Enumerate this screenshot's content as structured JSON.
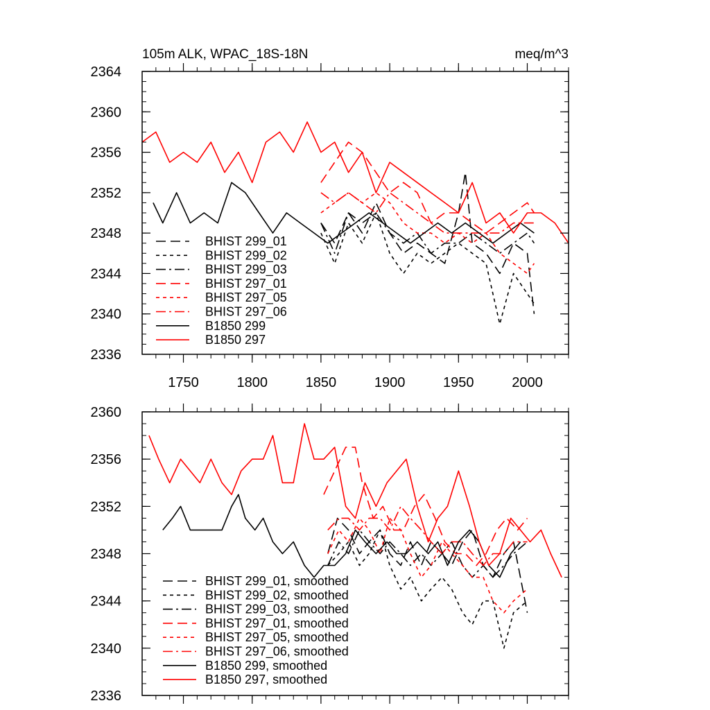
{
  "colors": {
    "black": "#000000",
    "red": "#ff0000"
  },
  "chart_data": [
    {
      "type": "line",
      "title": "105m ALK, WPAC_18S-18N",
      "units": "meq/m^3",
      "xlim": [
        1720,
        2030
      ],
      "ylim": [
        2336,
        2364
      ],
      "x_ticks": [
        1750,
        1800,
        1850,
        1900,
        1950,
        2000
      ],
      "x_tick_labels": [
        "1750",
        "1800",
        "1850",
        "1900",
        "1950",
        "2000"
      ],
      "y_ticks": [
        2336,
        2340,
        2344,
        2348,
        2352,
        2356,
        2360,
        2364
      ],
      "y_tick_labels": [
        "2336",
        "2340",
        "2344",
        "2348",
        "2352",
        "2356",
        "2360",
        "2364"
      ],
      "legend_position": "bottom-left",
      "series": [
        {
          "name": "BHIST 299_01",
          "color": "#000000",
          "dash": "long-dash",
          "x": [
            1850,
            1860,
            1870,
            1880,
            1890,
            1900,
            1910,
            1920,
            1930,
            1940,
            1950,
            1955,
            1960,
            1970,
            1980,
            1990,
            2000,
            2005
          ],
          "y": [
            2349,
            2347,
            2350,
            2348,
            2351,
            2348,
            2346,
            2347,
            2346,
            2345,
            2350,
            2354,
            2347,
            2346,
            2344,
            2347,
            2346,
            2340
          ]
        },
        {
          "name": "BHIST 299_02",
          "color": "#000000",
          "dash": "short-dash",
          "x": [
            1850,
            1860,
            1870,
            1880,
            1890,
            1900,
            1910,
            1920,
            1930,
            1940,
            1950,
            1960,
            1970,
            1980,
            1990,
            2000,
            2005
          ],
          "y": [
            2348,
            2345,
            2349,
            2347,
            2350,
            2346,
            2344,
            2346,
            2345,
            2346,
            2347,
            2346,
            2345,
            2339,
            2344,
            2342,
            2341
          ]
        },
        {
          "name": "BHIST 299_03",
          "color": "#000000",
          "dash": "dash-dot",
          "x": [
            1850,
            1860,
            1870,
            1880,
            1890,
            1900,
            1910,
            1920,
            1930,
            1940,
            1950,
            1960,
            1970,
            1980,
            1990,
            2000,
            2005
          ],
          "y": [
            2349,
            2346,
            2350,
            2349,
            2350,
            2348,
            2347,
            2348,
            2346,
            2347,
            2347,
            2348,
            2347,
            2346,
            2347,
            2348,
            2347
          ]
        },
        {
          "name": "BHIST 297_01",
          "color": "#ff0000",
          "dash": "long-dash",
          "x": [
            1850,
            1860,
            1870,
            1880,
            1890,
            1900,
            1910,
            1920,
            1930,
            1940,
            1950,
            1960,
            1970,
            1980,
            1990,
            2000,
            2005
          ],
          "y": [
            2353,
            2355,
            2357,
            2356,
            2354,
            2352,
            2353,
            2352,
            2349,
            2350,
            2350,
            2349,
            2348,
            2349,
            2350,
            2351,
            2350
          ]
        },
        {
          "name": "BHIST 297_05",
          "color": "#ff0000",
          "dash": "short-dash",
          "x": [
            1850,
            1860,
            1870,
            1880,
            1890,
            1900,
            1910,
            1920,
            1930,
            1940,
            1950,
            1960,
            1970,
            1980,
            1990,
            2000,
            2005
          ],
          "y": [
            2350,
            2351,
            2352,
            2351,
            2352,
            2351,
            2349,
            2348,
            2348,
            2347,
            2348,
            2347,
            2348,
            2346,
            2345,
            2344,
            2345
          ]
        },
        {
          "name": "BHIST 297_06",
          "color": "#ff0000",
          "dash": "dash-dot",
          "x": [
            1850,
            1860,
            1870,
            1880,
            1890,
            1900,
            1910,
            1920,
            1930,
            1940,
            1950,
            1960,
            1970,
            1980,
            1990,
            2000,
            2005
          ],
          "y": [
            2352,
            2351,
            2352,
            2351,
            2350,
            2352,
            2351,
            2350,
            2349,
            2348,
            2348,
            2348,
            2348,
            2348,
            2349,
            2349,
            2349
          ]
        },
        {
          "name": "B1850 299",
          "color": "#000000",
          "dash": "solid",
          "x": [
            1728,
            1735,
            1745,
            1755,
            1765,
            1775,
            1785,
            1795,
            1805,
            1815,
            1825,
            1835,
            1845,
            1855,
            1865,
            1875,
            1885,
            1895,
            1905,
            1915,
            1925,
            1935,
            1945,
            1955,
            1965,
            1975,
            1985,
            1995,
            2005
          ],
          "y": [
            2351,
            2349,
            2352,
            2349,
            2350,
            2349,
            2353,
            2352,
            2350,
            2348,
            2350,
            2349,
            2348,
            2347,
            2348,
            2349,
            2350,
            2349,
            2348,
            2347,
            2348,
            2349,
            2348,
            2349,
            2348,
            2347,
            2348,
            2349,
            2348
          ]
        },
        {
          "name": "B1850 297",
          "color": "#ff0000",
          "dash": "solid",
          "x": [
            1720,
            1730,
            1740,
            1750,
            1760,
            1770,
            1780,
            1790,
            1800,
            1810,
            1820,
            1830,
            1840,
            1850,
            1860,
            1870,
            1880,
            1890,
            1900,
            1910,
            1920,
            1930,
            1940,
            1950,
            1960,
            1970,
            1980,
            1990,
            2000,
            2010,
            2020,
            2030
          ],
          "y": [
            2357,
            2358,
            2355,
            2356,
            2355,
            2357,
            2354,
            2356,
            2353,
            2357,
            2358,
            2356,
            2359,
            2356,
            2357,
            2354,
            2356,
            2352,
            2355,
            2354,
            2353,
            2352,
            2351,
            2350,
            2353,
            2349,
            2350,
            2348,
            2350,
            2350,
            2349,
            2347
          ]
        }
      ]
    },
    {
      "type": "line",
      "xlim": [
        1720,
        2030
      ],
      "ylim": [
        2336,
        2360
      ],
      "x_ticks": [
        1750,
        1800,
        1850,
        1900,
        1950,
        2000
      ],
      "y_ticks": [
        2336,
        2340,
        2344,
        2348,
        2352,
        2356,
        2360
      ],
      "y_tick_labels": [
        "2336",
        "2340",
        "2344",
        "2348",
        "2352",
        "2356",
        "2360"
      ],
      "legend_position": "bottom-left",
      "series": [
        {
          "name": "BHIST 299_01, smoothed",
          "color": "#000000",
          "dash": "long-dash",
          "x": [
            1855,
            1862,
            1870,
            1878,
            1885,
            1893,
            1900,
            1908,
            1915,
            1923,
            1930,
            1938,
            1945,
            1953,
            1960,
            1968,
            1975,
            1983,
            1990,
            2000
          ],
          "y": [
            2348,
            2351,
            2350,
            2348,
            2349,
            2350,
            2348,
            2347,
            2349,
            2347,
            2349,
            2348,
            2347,
            2349,
            2350,
            2347,
            2346,
            2348,
            2349,
            2343
          ]
        },
        {
          "name": "BHIST 299_02, smoothed",
          "color": "#000000",
          "dash": "short-dash",
          "x": [
            1855,
            1863,
            1870,
            1878,
            1885,
            1893,
            1900,
            1908,
            1915,
            1923,
            1930,
            1938,
            1945,
            1953,
            1960,
            1968,
            1975,
            1983,
            1990,
            2000
          ],
          "y": [
            2347,
            2348,
            2349,
            2347,
            2348,
            2350,
            2347,
            2345,
            2346,
            2344,
            2345,
            2346,
            2345,
            2343,
            2342,
            2344,
            2344,
            2340,
            2343,
            2344
          ]
        },
        {
          "name": "BHIST 299_03, smoothed",
          "color": "#000000",
          "dash": "dash-dot",
          "x": [
            1855,
            1863,
            1870,
            1878,
            1885,
            1893,
            1900,
            1908,
            1915,
            1923,
            1930,
            1938,
            1945,
            1953,
            1960,
            1968,
            1975,
            1983,
            1990,
            2000
          ],
          "y": [
            2347,
            2349,
            2348,
            2350,
            2349,
            2348,
            2349,
            2348,
            2347,
            2348,
            2347,
            2348,
            2349,
            2347,
            2346,
            2347,
            2346,
            2347,
            2348,
            2349
          ]
        },
        {
          "name": "BHIST 297_01, smoothed",
          "color": "#ff0000",
          "dash": "long-dash",
          "x": [
            1852,
            1860,
            1868,
            1875,
            1880,
            1888,
            1895,
            1903,
            1910,
            1918,
            1925,
            1933,
            1940,
            1948,
            1955,
            1963,
            1970,
            1978,
            1985,
            1993,
            2000
          ],
          "y": [
            2353,
            2355,
            2357,
            2357,
            2354,
            2351,
            2352,
            2350,
            2350,
            2352,
            2353,
            2351,
            2349,
            2348,
            2348,
            2347,
            2348,
            2350,
            2351,
            2350,
            2351
          ]
        },
        {
          "name": "BHIST 297_05, smoothed",
          "color": "#ff0000",
          "dash": "short-dash",
          "x": [
            1855,
            1863,
            1870,
            1878,
            1885,
            1893,
            1900,
            1908,
            1915,
            1923,
            1930,
            1938,
            1945,
            1953,
            1960,
            1968,
            1975,
            1983,
            1990,
            2000
          ],
          "y": [
            2348,
            2350,
            2349,
            2351,
            2350,
            2348,
            2351,
            2350,
            2348,
            2346,
            2347,
            2349,
            2348,
            2347,
            2346,
            2346,
            2344,
            2343,
            2344,
            2345
          ]
        },
        {
          "name": "BHIST 297_06, smoothed",
          "color": "#ff0000",
          "dash": "dash-dot",
          "x": [
            1855,
            1863,
            1870,
            1878,
            1885,
            1893,
            1900,
            1908,
            1915,
            1923,
            1930,
            1938,
            1945,
            1953,
            1960,
            1968,
            1975,
            1983,
            1990,
            2000
          ],
          "y": [
            2350,
            2351,
            2351,
            2350,
            2351,
            2351,
            2350,
            2352,
            2351,
            2350,
            2349,
            2348,
            2349,
            2349,
            2348,
            2347,
            2348,
            2348,
            2349,
            2349
          ]
        },
        {
          "name": "B1850 299, smoothed",
          "color": "#000000",
          "dash": "solid",
          "x": [
            1735,
            1742,
            1748,
            1755,
            1762,
            1770,
            1778,
            1785,
            1790,
            1795,
            1802,
            1808,
            1815,
            1822,
            1830,
            1838,
            1845,
            1852,
            1860,
            1868,
            1875,
            1882,
            1890,
            1898,
            1905,
            1912,
            1920,
            1928,
            1935,
            1942,
            1950,
            1958,
            1965,
            1972,
            1980,
            1988,
            1995
          ],
          "y": [
            2350,
            2351,
            2352,
            2350,
            2350,
            2350,
            2350,
            2352,
            2353,
            2351,
            2350,
            2351,
            2349,
            2348,
            2349,
            2347,
            2346,
            2347,
            2347,
            2348,
            2350,
            2349,
            2348,
            2349,
            2348,
            2348,
            2349,
            2348,
            2349,
            2347,
            2349,
            2350,
            2349,
            2347,
            2346,
            2348,
            2349
          ]
        },
        {
          "name": "B1850 297, smoothed",
          "color": "#ff0000",
          "dash": "solid",
          "x": [
            1725,
            1732,
            1740,
            1748,
            1755,
            1762,
            1770,
            1778,
            1785,
            1792,
            1800,
            1808,
            1815,
            1822,
            1830,
            1838,
            1845,
            1852,
            1860,
            1868,
            1875,
            1882,
            1890,
            1898,
            1905,
            1912,
            1920,
            1928,
            1935,
            1942,
            1950,
            1958,
            1965,
            1972,
            1980,
            1988,
            1995,
            2002,
            2010,
            2017,
            2025
          ],
          "y": [
            2358,
            2356,
            2354,
            2356,
            2355,
            2354,
            2356,
            2354,
            2353,
            2355,
            2356,
            2356,
            2358,
            2354,
            2354,
            2359,
            2356,
            2356,
            2357,
            2352,
            2351,
            2354,
            2352,
            2354,
            2355,
            2356,
            2352,
            2349,
            2351,
            2352,
            2355,
            2352,
            2349,
            2347,
            2348,
            2351,
            2350,
            2349,
            2350,
            2348,
            2346
          ]
        }
      ]
    }
  ]
}
